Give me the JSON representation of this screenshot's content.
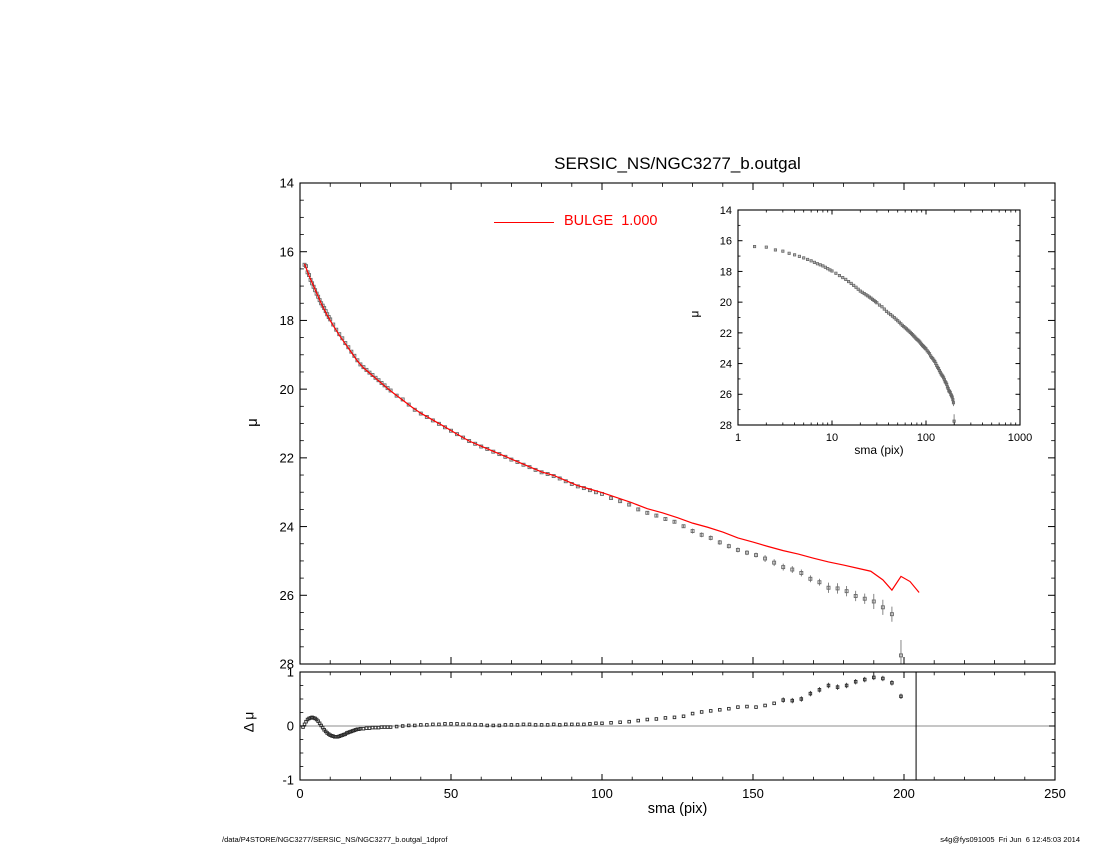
{
  "page": {
    "background": "#ffffff",
    "footer_left": "/data/P4STORE/NGC3277/SERSIC_NS/NGC3277_b.outgal_1dprof",
    "footer_right": "s4g@fys091005  Fri Jun  6 12:45:03 2014"
  },
  "chart_data": [
    {
      "id": "main",
      "type": "scatter",
      "title": "SERSIC_NS/NGC3277_b.outgal",
      "xlabel": "sma (pix)",
      "ylabel": "μ",
      "xlim": [
        0,
        250
      ],
      "ylim": [
        14,
        28
      ],
      "y_inverted": true,
      "xticks": [
        0,
        50,
        100,
        150,
        200,
        250
      ],
      "xminor": 10,
      "yticks": [
        14,
        16,
        18,
        20,
        22,
        24,
        26,
        28
      ],
      "yminor": 0.5,
      "x_tick_labels_visible": false,
      "grid": false,
      "legend_position": "top-center-inside",
      "legend": {
        "label": "BULGE  1.000",
        "color": "#ff0000"
      },
      "series": [
        {
          "name": "observed-profile",
          "type": "scatter",
          "marker": "open-square",
          "color": "#686868",
          "x": [
            1.5,
            2,
            2.5,
            3,
            3.5,
            4,
            4.5,
            5,
            5.5,
            6,
            6.5,
            7,
            7.5,
            8,
            8.5,
            9,
            9.5,
            10,
            11,
            12,
            13,
            14,
            15,
            16,
            17,
            18,
            19,
            20,
            21,
            22,
            23,
            24,
            25,
            26,
            27,
            28,
            29,
            30,
            32,
            34,
            36,
            38,
            40,
            42,
            44,
            46,
            48,
            50,
            52,
            54,
            56,
            58,
            60,
            62,
            64,
            66,
            68,
            70,
            72,
            74,
            76,
            78,
            80,
            82,
            84,
            86,
            88,
            90,
            92,
            94,
            96,
            98,
            100,
            103,
            106,
            109,
            112,
            115,
            118,
            121,
            124,
            127,
            130,
            133,
            136,
            139,
            142,
            145,
            148,
            151,
            154,
            157,
            160,
            163,
            166,
            169,
            172,
            175,
            178,
            181,
            184,
            187,
            190,
            193,
            196,
            199
          ],
          "y": [
            16.38,
            16.42,
            16.6,
            16.68,
            16.82,
            16.92,
            17.02,
            17.12,
            17.22,
            17.31,
            17.41,
            17.5,
            17.57,
            17.64,
            17.73,
            17.82,
            17.9,
            17.97,
            18.12,
            18.27,
            18.4,
            18.52,
            18.66,
            18.78,
            18.91,
            19.03,
            19.16,
            19.28,
            19.36,
            19.44,
            19.52,
            19.59,
            19.67,
            19.74,
            19.82,
            19.89,
            19.97,
            20.04,
            20.19,
            20.3,
            20.45,
            20.6,
            20.71,
            20.81,
            20.91,
            21.01,
            21.11,
            21.21,
            21.31,
            21.41,
            21.51,
            21.59,
            21.67,
            21.74,
            21.82,
            21.89,
            21.97,
            22.05,
            22.12,
            22.2,
            22.27,
            22.35,
            22.42,
            22.47,
            22.53,
            22.6,
            22.68,
            22.76,
            22.83,
            22.88,
            22.94,
            23.0,
            23.05,
            23.17,
            23.26,
            23.36,
            23.5,
            23.6,
            23.68,
            23.78,
            23.86,
            23.99,
            24.13,
            24.24,
            24.33,
            24.46,
            24.57,
            24.68,
            24.76,
            24.83,
            24.93,
            25.05,
            25.18,
            25.25,
            25.35,
            25.52,
            25.62,
            25.78,
            25.8,
            25.88,
            26.02,
            26.1,
            26.18,
            26.35,
            26.55,
            27.75
          ],
          "yerr": [
            0.02,
            0.02,
            0.02,
            0.02,
            0.02,
            0.02,
            0.02,
            0.02,
            0.02,
            0.02,
            0.02,
            0.02,
            0.02,
            0.02,
            0.02,
            0.02,
            0.02,
            0.02,
            0.02,
            0.02,
            0.02,
            0.02,
            0.02,
            0.02,
            0.02,
            0.02,
            0.02,
            0.02,
            0.02,
            0.02,
            0.02,
            0.02,
            0.02,
            0.02,
            0.02,
            0.02,
            0.02,
            0.02,
            0.02,
            0.02,
            0.02,
            0.02,
            0.02,
            0.02,
            0.02,
            0.02,
            0.02,
            0.02,
            0.02,
            0.02,
            0.02,
            0.02,
            0.02,
            0.02,
            0.02,
            0.02,
            0.02,
            0.02,
            0.02,
            0.02,
            0.02,
            0.02,
            0.02,
            0.02,
            0.02,
            0.02,
            0.02,
            0.02,
            0.02,
            0.02,
            0.02,
            0.02,
            0.02,
            0.04,
            0.04,
            0.04,
            0.04,
            0.04,
            0.04,
            0.04,
            0.04,
            0.04,
            0.07,
            0.07,
            0.07,
            0.07,
            0.07,
            0.07,
            0.07,
            0.07,
            0.1,
            0.1,
            0.1,
            0.1,
            0.1,
            0.1,
            0.1,
            0.15,
            0.15,
            0.15,
            0.15,
            0.15,
            0.22,
            0.22,
            0.22,
            0.45
          ]
        },
        {
          "name": "bulge-model",
          "type": "line",
          "color": "#ff0000",
          "x": [
            1.5,
            3,
            5,
            7,
            9,
            11,
            13,
            15,
            17,
            19,
            21,
            23,
            25,
            27,
            29,
            31,
            34,
            37,
            40,
            44,
            48,
            52,
            56,
            60,
            64,
            68,
            72,
            76,
            80,
            84,
            88,
            92,
            96,
            100,
            105,
            110,
            115,
            120,
            125,
            130,
            135,
            140,
            145,
            150,
            155,
            160,
            165,
            170,
            175,
            180,
            185,
            189,
            193,
            196,
            199,
            202,
            205
          ],
          "y": [
            16.35,
            16.7,
            17.1,
            17.5,
            17.85,
            18.15,
            18.43,
            18.68,
            18.93,
            19.18,
            19.38,
            19.53,
            19.68,
            19.83,
            19.98,
            20.12,
            20.32,
            20.52,
            20.7,
            20.9,
            21.1,
            21.31,
            21.51,
            21.66,
            21.81,
            21.96,
            22.11,
            22.26,
            22.41,
            22.51,
            22.66,
            22.81,
            22.91,
            23.01,
            23.16,
            23.31,
            23.48,
            23.6,
            23.74,
            23.9,
            24.02,
            24.16,
            24.33,
            24.45,
            24.58,
            24.7,
            24.8,
            24.92,
            25.03,
            25.12,
            25.22,
            25.3,
            25.55,
            25.85,
            25.45,
            25.6,
            25.92
          ]
        }
      ]
    },
    {
      "id": "inset",
      "type": "scatter",
      "title": "",
      "xlabel": "sma (pix)",
      "ylabel": "μ",
      "xlim": [
        1,
        1000
      ],
      "xlog": true,
      "ylim": [
        14,
        28
      ],
      "y_inverted": true,
      "xticks": [
        1,
        10,
        100,
        1000
      ],
      "yticks": [
        14,
        16,
        18,
        20,
        22,
        24,
        26,
        28
      ],
      "yminor": 1,
      "x_tick_labels_visible": true,
      "grid": false,
      "series_ref": {
        "chart": 0,
        "series": 0
      }
    },
    {
      "id": "residual",
      "type": "scatter",
      "title": "",
      "xlabel": "sma (pix)",
      "ylabel": "Δ μ",
      "xlim": [
        0,
        250
      ],
      "ylim": [
        -1,
        1
      ],
      "y_inverted": false,
      "xticks": [
        0,
        50,
        100,
        150,
        200,
        250
      ],
      "xminor": 10,
      "yticks": [
        -1,
        0,
        1
      ],
      "yminor": 0.25,
      "x_tick_labels_visible": true,
      "grid": false,
      "hline": 0,
      "vline": 204,
      "series": [
        {
          "name": "residual-points",
          "type": "scatter",
          "marker": "open-square",
          "color": "#2a2a2a",
          "yerr_const": 0.05,
          "yerr_min_x": 158,
          "x": [
            1,
            1.5,
            2,
            2.5,
            3,
            3.5,
            4,
            4.5,
            5,
            5.5,
            6,
            6.5,
            7,
            7.5,
            8,
            8.5,
            9,
            9.5,
            10,
            10.5,
            11,
            11.5,
            12,
            12.5,
            13,
            13.5,
            14,
            14.5,
            15,
            15.5,
            16,
            16.5,
            17,
            17.5,
            18,
            18.5,
            19,
            19.5,
            20,
            21,
            22,
            23,
            24,
            25,
            26,
            27,
            28,
            29,
            30,
            32,
            34,
            36,
            38,
            40,
            42,
            44,
            46,
            48,
            50,
            52,
            54,
            56,
            58,
            60,
            62,
            64,
            66,
            68,
            70,
            72,
            74,
            76,
            78,
            80,
            82,
            84,
            86,
            88,
            90,
            92,
            94,
            96,
            98,
            100,
            103,
            106,
            109,
            112,
            115,
            118,
            121,
            124,
            127,
            130,
            133,
            136,
            139,
            142,
            145,
            148,
            151,
            154,
            157,
            160,
            163,
            166,
            169,
            172,
            175,
            178,
            181,
            184,
            187,
            190,
            193,
            196,
            199
          ],
          "y": [
            -0.02,
            0.03,
            0.08,
            0.12,
            0.14,
            0.15,
            0.16,
            0.15,
            0.14,
            0.12,
            0.09,
            0.05,
            0.01,
            -0.03,
            -0.07,
            -0.1,
            -0.13,
            -0.15,
            -0.17,
            -0.18,
            -0.19,
            -0.2,
            -0.2,
            -0.2,
            -0.19,
            -0.18,
            -0.17,
            -0.16,
            -0.15,
            -0.13,
            -0.12,
            -0.11,
            -0.1,
            -0.09,
            -0.08,
            -0.07,
            -0.06,
            -0.06,
            -0.05,
            -0.05,
            -0.04,
            -0.04,
            -0.03,
            -0.03,
            -0.03,
            -0.02,
            -0.02,
            -0.02,
            -0.02,
            -0.01,
            0.0,
            0.01,
            0.01,
            0.02,
            0.02,
            0.03,
            0.03,
            0.04,
            0.04,
            0.04,
            0.03,
            0.03,
            0.02,
            0.02,
            0.01,
            0.01,
            0.01,
            0.02,
            0.02,
            0.02,
            0.03,
            0.03,
            0.02,
            0.02,
            0.02,
            0.03,
            0.02,
            0.03,
            0.03,
            0.03,
            0.03,
            0.04,
            0.05,
            0.05,
            0.06,
            0.07,
            0.08,
            0.1,
            0.12,
            0.13,
            0.15,
            0.16,
            0.18,
            0.23,
            0.26,
            0.28,
            0.3,
            0.32,
            0.35,
            0.36,
            0.35,
            0.38,
            0.42,
            0.48,
            0.47,
            0.5,
            0.6,
            0.67,
            0.75,
            0.72,
            0.75,
            0.82,
            0.86,
            0.9,
            0.88,
            0.8,
            0.55
          ]
        }
      ]
    }
  ]
}
